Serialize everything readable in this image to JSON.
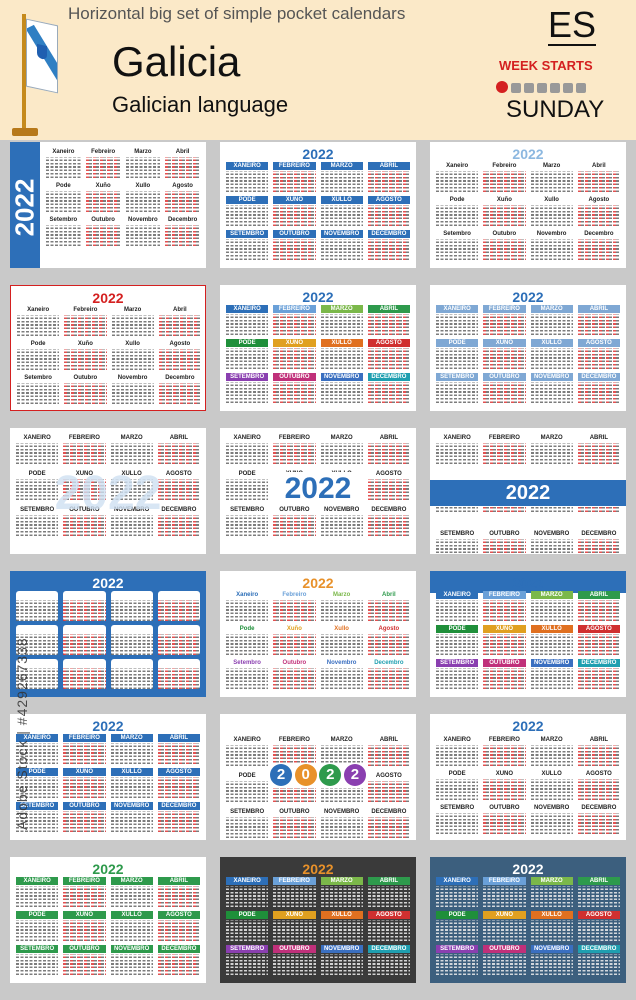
{
  "header": {
    "subtitle": "Horizontal big set of simple pocket calendars",
    "title": "Galicia",
    "language": "Galician language",
    "code": "ES",
    "week_starts_label": "WEEK STARTS",
    "week_start_day": "SUNDAY"
  },
  "year": "2022",
  "months_title_case": [
    "Xaneiro",
    "Febreiro",
    "Marzo",
    "Abril",
    "Pode",
    "Xuño",
    "Xullo",
    "Agosto",
    "Setembro",
    "Outubro",
    "Novembro",
    "Decembro"
  ],
  "months_upper": [
    "XANEIRO",
    "FEBREIRO",
    "MARZO",
    "ABRIL",
    "PODE",
    "XUÑO",
    "XULLO",
    "AGOSTO",
    "SETEMBRO",
    "OUTUBRO",
    "NOVEMBRO",
    "DECEMBRO"
  ],
  "watermark": "Adobe Stock | #429267338",
  "colors": {
    "blue": "#2d6fb8",
    "red": "#d42020",
    "green": "#2e9a4c",
    "dark": "#3a3a3a",
    "slate": "#3c5f7e",
    "header_bg": "#fbe9c8"
  }
}
